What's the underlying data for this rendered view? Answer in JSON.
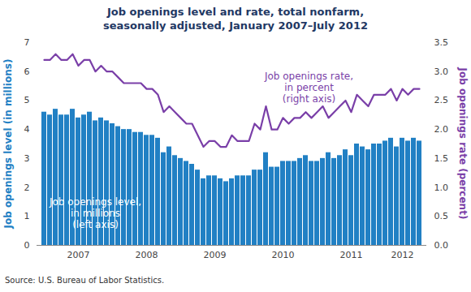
{
  "chart_data": {
    "type": "bar",
    "title": "Job openings level and rate, total nonfarm,\nseasonally adjusted, January 2007–July 2012",
    "caption": "Source: U.S. Bureau of Labor Statistics.",
    "y_label": "Job openings level (in millions)",
    "y2_label": "Job openings rate (percent)",
    "categories": [
      null,
      null,
      null,
      null,
      null,
      null,
      "2007",
      null,
      null,
      null,
      null,
      null,
      null,
      null,
      null,
      null,
      null,
      null,
      "2008",
      null,
      null,
      null,
      null,
      null,
      null,
      null,
      null,
      null,
      null,
      null,
      "2009",
      null,
      null,
      null,
      null,
      null,
      null,
      null,
      null,
      null,
      null,
      null,
      "2010",
      null,
      null,
      null,
      null,
      null,
      null,
      null,
      null,
      null,
      null,
      null,
      "2011",
      null,
      null,
      null,
      null,
      null,
      null,
      null,
      null,
      "2012",
      null,
      null,
      null
    ],
    "series": [
      {
        "name": "Job openings level,\nin millions\n(left axis)",
        "type": "bar",
        "color": "#2180c4",
        "values": [
          4.6,
          4.5,
          4.7,
          4.5,
          4.5,
          4.7,
          4.4,
          4.5,
          4.6,
          4.3,
          4.4,
          4.3,
          4.2,
          4.1,
          4.0,
          4.0,
          3.9,
          3.9,
          3.8,
          3.8,
          3.7,
          3.2,
          3.4,
          3.1,
          3.0,
          2.9,
          2.8,
          2.6,
          2.3,
          2.4,
          2.4,
          2.3,
          2.2,
          2.3,
          2.4,
          2.4,
          2.4,
          2.6,
          2.6,
          3.2,
          2.7,
          2.7,
          2.9,
          2.9,
          2.9,
          3.0,
          3.1,
          2.9,
          2.9,
          3.0,
          3.2,
          3.0,
          3.1,
          3.3,
          3.1,
          3.5,
          3.4,
          3.3,
          3.5,
          3.5,
          3.6,
          3.7,
          3.4,
          3.7,
          3.6,
          3.7,
          3.6
        ]
      },
      {
        "name": "Job openings rate,\nin percent\n(right axis)",
        "type": "line",
        "axis": "y2",
        "color": "#7a3fa8",
        "values": [
          3.2,
          3.2,
          3.3,
          3.2,
          3.2,
          3.3,
          3.1,
          3.2,
          3.2,
          3.0,
          3.1,
          3.0,
          3.0,
          2.9,
          2.8,
          2.8,
          2.8,
          2.8,
          2.7,
          2.7,
          2.6,
          2.3,
          2.4,
          2.3,
          2.2,
          2.1,
          2.1,
          1.9,
          1.7,
          1.8,
          1.8,
          1.7,
          1.7,
          1.9,
          1.8,
          1.8,
          1.8,
          2.1,
          2.0,
          2.4,
          2.0,
          2.0,
          2.2,
          2.1,
          2.2,
          2.2,
          2.3,
          2.2,
          2.3,
          2.4,
          2.2,
          2.3,
          2.4,
          2.5,
          2.3,
          2.6,
          2.5,
          2.4,
          2.6,
          2.6,
          2.6,
          2.7,
          2.5,
          2.7,
          2.6,
          2.7,
          2.7
        ]
      }
    ],
    "ylim": [
      0,
      7
    ],
    "yticks": [
      0,
      1,
      2,
      3,
      4,
      5,
      6,
      7
    ],
    "y2lim": [
      0,
      3.5
    ],
    "y2ticks": [
      {
        "value": 0,
        "label": "0.0"
      },
      {
        "value": 0.5,
        "label": "0.5"
      },
      {
        "value": 1,
        "label": "1.0"
      },
      {
        "value": 1.5,
        "label": "1.5"
      },
      {
        "value": 2,
        "label": "2.0"
      },
      {
        "value": 2.5,
        "label": "2.5"
      },
      {
        "value": 3,
        "label": "3.0"
      },
      {
        "value": 3.5,
        "label": "3.5"
      }
    ],
    "grid": false
  }
}
